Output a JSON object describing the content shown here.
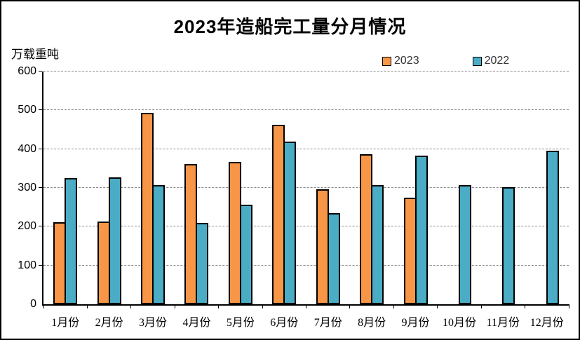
{
  "title": "2023年造船完工量分月情况",
  "y_axis": {
    "unit_label": "万载重吨",
    "ticks": [
      0,
      100,
      200,
      300,
      400,
      500,
      600
    ]
  },
  "legend": {
    "items": [
      {
        "label": "2023",
        "color": "#F79646"
      },
      {
        "label": "2022",
        "color": "#4BACC6"
      }
    ]
  },
  "chart_data": {
    "type": "bar",
    "title": "2023年造船完工量分月情况",
    "ylabel": "万载重吨",
    "xlabel": "",
    "categories": [
      "1月份",
      "2月份",
      "3月份",
      "4月份",
      "5月份",
      "6月份",
      "7月份",
      "8月份",
      "9月份",
      "10月份",
      "11月份",
      "12月份"
    ],
    "series": [
      {
        "name": "2023",
        "color": "#F79646",
        "values": [
          211,
          213,
          493,
          362,
          367,
          463,
          296,
          387,
          275,
          null,
          null,
          null
        ]
      },
      {
        "name": "2022",
        "color": "#4BACC6",
        "values": [
          326,
          328,
          308,
          210,
          256,
          420,
          235,
          308,
          384,
          307,
          302,
          396
        ]
      }
    ],
    "ylim": [
      0,
      600
    ],
    "ytick_step": 100,
    "grid": "horizontal-dashed",
    "legend_position": "top-right"
  }
}
